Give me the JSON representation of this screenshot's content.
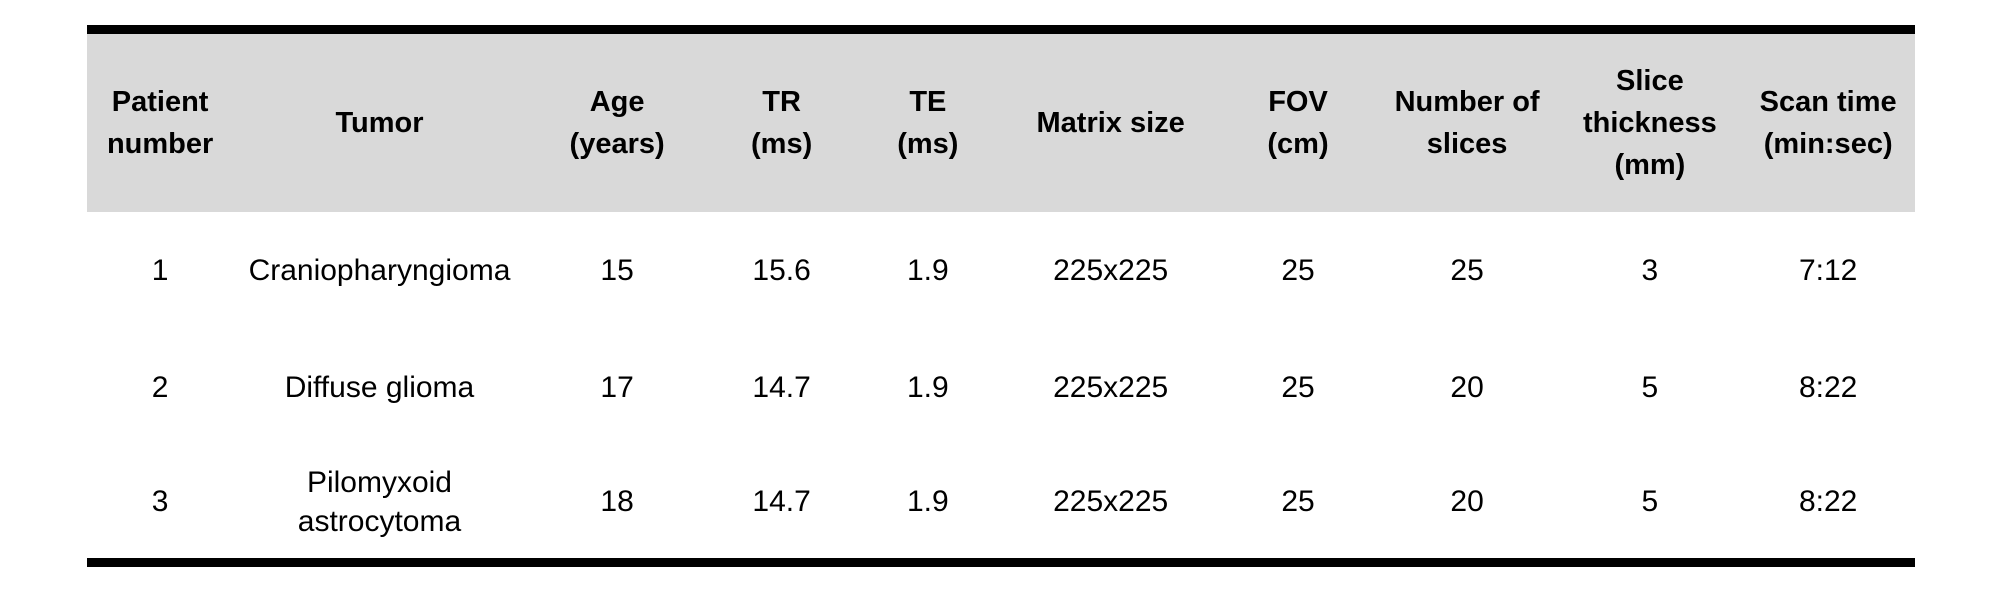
{
  "page": {
    "background": "#ffffff",
    "text_color": "#000000"
  },
  "table": {
    "header_bg": "#d9d9d9",
    "border_color": "#000000",
    "columns": [
      {
        "key": "patient_number",
        "label": "Patient\nnumber"
      },
      {
        "key": "tumor",
        "label": "Tumor"
      },
      {
        "key": "age_years",
        "label": "Age\n(years)"
      },
      {
        "key": "tr_ms",
        "label": "TR\n(ms)"
      },
      {
        "key": "te_ms",
        "label": "TE\n(ms)"
      },
      {
        "key": "matrix_size",
        "label": "Matrix size"
      },
      {
        "key": "fov_cm",
        "label": "FOV\n(cm)"
      },
      {
        "key": "number_of_slices",
        "label": "Number of\nslices"
      },
      {
        "key": "slice_thickness_mm",
        "label": "Slice\nthickness\n(mm)"
      },
      {
        "key": "scan_time_min_sec",
        "label": "Scan time\n(min:sec)"
      }
    ],
    "rows": [
      {
        "patient_number": "1",
        "tumor": "Craniopharyngioma",
        "age_years": "15",
        "tr_ms": "15.6",
        "te_ms": "1.9",
        "matrix_size": "225x225",
        "fov_cm": "25",
        "number_of_slices": "25",
        "slice_thickness_mm": "3",
        "scan_time_min_sec": "7:12"
      },
      {
        "patient_number": "2",
        "tumor": "Diffuse glioma",
        "age_years": "17",
        "tr_ms": "14.7",
        "te_ms": "1.9",
        "matrix_size": "225x225",
        "fov_cm": "25",
        "number_of_slices": "20",
        "slice_thickness_mm": "5",
        "scan_time_min_sec": "8:22"
      },
      {
        "patient_number": "3",
        "tumor": "Pilomyxoid astrocytoma",
        "age_years": "18",
        "tr_ms": "14.7",
        "te_ms": "1.9",
        "matrix_size": "225x225",
        "fov_cm": "25",
        "number_of_slices": "20",
        "slice_thickness_mm": "5",
        "scan_time_min_sec": "8:22"
      }
    ]
  }
}
